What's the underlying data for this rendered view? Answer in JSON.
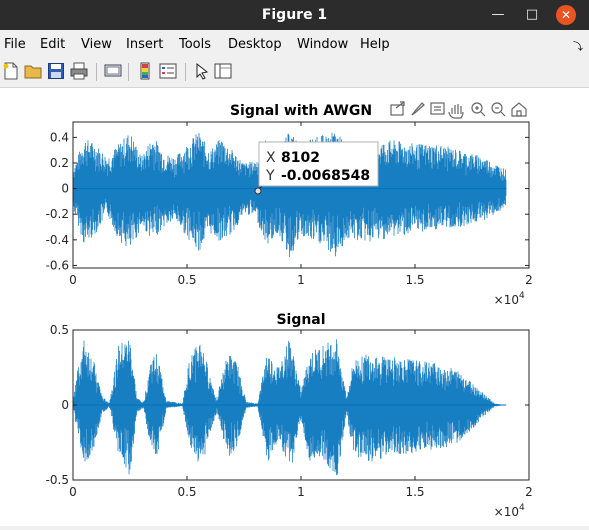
{
  "window": {
    "title": "Figure 1"
  },
  "menu": [
    "File",
    "Edit",
    "View",
    "Insert",
    "Tools",
    "Desktop",
    "Window",
    "Help"
  ],
  "axes_toolbar_icons": [
    "export-icon",
    "brush-icon",
    "datatip-icon",
    "pan-icon",
    "zoom-in-icon",
    "zoom-out-icon",
    "home-icon"
  ],
  "datatip": {
    "x_label": "X",
    "x_value": "8102",
    "y_label": "Y",
    "y_value": "-0.0068548"
  },
  "colors": {
    "signal": "#0072bd",
    "titlebar": "#2c2c2c",
    "close": "#e95420"
  },
  "chart_data": [
    {
      "type": "line",
      "title": "Signal with AWGN",
      "xlim": [
        0,
        20000
      ],
      "ylim": [
        -0.62,
        0.52
      ],
      "xticks": [
        "0",
        "0.5",
        "1",
        "1.5",
        "2"
      ],
      "yticks": [
        "0.4",
        "0.2",
        "0",
        "-0.2",
        "-0.4",
        "-0.6"
      ],
      "x_exponent": "×10",
      "x_exponent_power": "4",
      "grid": false,
      "series": [
        {
          "color": "#0072bd",
          "envelope": [
            {
              "x": 0,
              "lo": -0.15,
              "hi": 0.15
            },
            {
              "x": 500,
              "lo": -0.45,
              "hi": 0.4
            },
            {
              "x": 1000,
              "lo": -0.35,
              "hi": 0.35
            },
            {
              "x": 1500,
              "lo": -0.2,
              "hi": 0.25
            },
            {
              "x": 2000,
              "lo": -0.4,
              "hi": 0.35
            },
            {
              "x": 2500,
              "lo": -0.5,
              "hi": 0.45
            },
            {
              "x": 3000,
              "lo": -0.3,
              "hi": 0.25
            },
            {
              "x": 3500,
              "lo": -0.4,
              "hi": 0.42
            },
            {
              "x": 4000,
              "lo": -0.3,
              "hi": 0.28
            },
            {
              "x": 4500,
              "lo": -0.25,
              "hi": 0.25
            },
            {
              "x": 5000,
              "lo": -0.38,
              "hi": 0.35
            },
            {
              "x": 5500,
              "lo": -0.5,
              "hi": 0.45
            },
            {
              "x": 6000,
              "lo": -0.35,
              "hi": 0.3
            },
            {
              "x": 6500,
              "lo": -0.42,
              "hi": 0.4
            },
            {
              "x": 7000,
              "lo": -0.35,
              "hi": 0.3
            },
            {
              "x": 7500,
              "lo": -0.2,
              "hi": 0.2
            },
            {
              "x": 8000,
              "lo": -0.22,
              "hi": 0.22
            },
            {
              "x": 8500,
              "lo": -0.45,
              "hi": 0.4
            },
            {
              "x": 9000,
              "lo": -0.35,
              "hi": 0.3
            },
            {
              "x": 9500,
              "lo": -0.55,
              "hi": 0.45
            },
            {
              "x": 10000,
              "lo": -0.38,
              "hi": 0.35
            },
            {
              "x": 10500,
              "lo": -0.42,
              "hi": 0.4
            },
            {
              "x": 11000,
              "lo": -0.45,
              "hi": 0.42
            },
            {
              "x": 11500,
              "lo": -0.55,
              "hi": 0.45
            },
            {
              "x": 12000,
              "lo": -0.4,
              "hi": 0.35
            },
            {
              "x": 13000,
              "lo": -0.42,
              "hi": 0.35
            },
            {
              "x": 14000,
              "lo": -0.38,
              "hi": 0.38
            },
            {
              "x": 15000,
              "lo": -0.35,
              "hi": 0.35
            },
            {
              "x": 16000,
              "lo": -0.32,
              "hi": 0.35
            },
            {
              "x": 17000,
              "lo": -0.3,
              "hi": 0.3
            },
            {
              "x": 18000,
              "lo": -0.25,
              "hi": 0.25
            },
            {
              "x": 19000,
              "lo": -0.15,
              "hi": 0.15
            }
          ]
        }
      ]
    },
    {
      "type": "line",
      "title": "Signal",
      "xlim": [
        0,
        20000
      ],
      "ylim": [
        -0.5,
        0.5
      ],
      "xticks": [
        "0",
        "0.5",
        "1",
        "1.5",
        "2"
      ],
      "yticks": [
        "0.5",
        "0",
        "-0.5"
      ],
      "x_exponent": "×10",
      "x_exponent_power": "4",
      "grid": false,
      "series": [
        {
          "color": "#0072bd",
          "envelope": [
            {
              "x": 0,
              "lo": -0.01,
              "hi": 0.01
            },
            {
              "x": 200,
              "lo": -0.2,
              "hi": 0.25
            },
            {
              "x": 500,
              "lo": -0.4,
              "hi": 0.45
            },
            {
              "x": 900,
              "lo": -0.3,
              "hi": 0.3
            },
            {
              "x": 1300,
              "lo": -0.05,
              "hi": 0.05
            },
            {
              "x": 1600,
              "lo": -0.02,
              "hi": 0.02
            },
            {
              "x": 2000,
              "lo": -0.35,
              "hi": 0.4
            },
            {
              "x": 2500,
              "lo": -0.48,
              "hi": 0.45
            },
            {
              "x": 2800,
              "lo": -0.05,
              "hi": 0.05
            },
            {
              "x": 3100,
              "lo": -0.02,
              "hi": 0.02
            },
            {
              "x": 3400,
              "lo": -0.3,
              "hi": 0.3
            },
            {
              "x": 3700,
              "lo": -0.35,
              "hi": 0.35
            },
            {
              "x": 4100,
              "lo": -0.02,
              "hi": 0.03
            },
            {
              "x": 4800,
              "lo": -0.01,
              "hi": 0.01
            },
            {
              "x": 5100,
              "lo": -0.25,
              "hi": 0.3
            },
            {
              "x": 5600,
              "lo": -0.45,
              "hi": 0.45
            },
            {
              "x": 6000,
              "lo": -0.2,
              "hi": 0.2
            },
            {
              "x": 6300,
              "lo": -0.05,
              "hi": 0.05
            },
            {
              "x": 6800,
              "lo": -0.35,
              "hi": 0.35
            },
            {
              "x": 7200,
              "lo": -0.3,
              "hi": 0.28
            },
            {
              "x": 7600,
              "lo": -0.02,
              "hi": 0.02
            },
            {
              "x": 8100,
              "lo": -0.01,
              "hi": 0.01
            },
            {
              "x": 8500,
              "lo": -0.4,
              "hi": 0.35
            },
            {
              "x": 9000,
              "lo": -0.25,
              "hi": 0.25
            },
            {
              "x": 9500,
              "lo": -0.48,
              "hi": 0.45
            },
            {
              "x": 10000,
              "lo": -0.1,
              "hi": 0.1
            },
            {
              "x": 10400,
              "lo": -0.4,
              "hi": 0.35
            },
            {
              "x": 11000,
              "lo": -0.38,
              "hi": 0.4
            },
            {
              "x": 11600,
              "lo": -0.48,
              "hi": 0.45
            },
            {
              "x": 12000,
              "lo": -0.05,
              "hi": 0.05
            },
            {
              "x": 12300,
              "lo": -0.35,
              "hi": 0.3
            },
            {
              "x": 13000,
              "lo": -0.38,
              "hi": 0.35
            },
            {
              "x": 14000,
              "lo": -0.35,
              "hi": 0.32
            },
            {
              "x": 15000,
              "lo": -0.32,
              "hi": 0.3
            },
            {
              "x": 16000,
              "lo": -0.3,
              "hi": 0.28
            },
            {
              "x": 17000,
              "lo": -0.25,
              "hi": 0.22
            },
            {
              "x": 18000,
              "lo": -0.08,
              "hi": 0.08
            },
            {
              "x": 18500,
              "lo": -0.01,
              "hi": 0.01
            },
            {
              "x": 19000,
              "lo": 0,
              "hi": 0
            }
          ]
        }
      ]
    }
  ]
}
